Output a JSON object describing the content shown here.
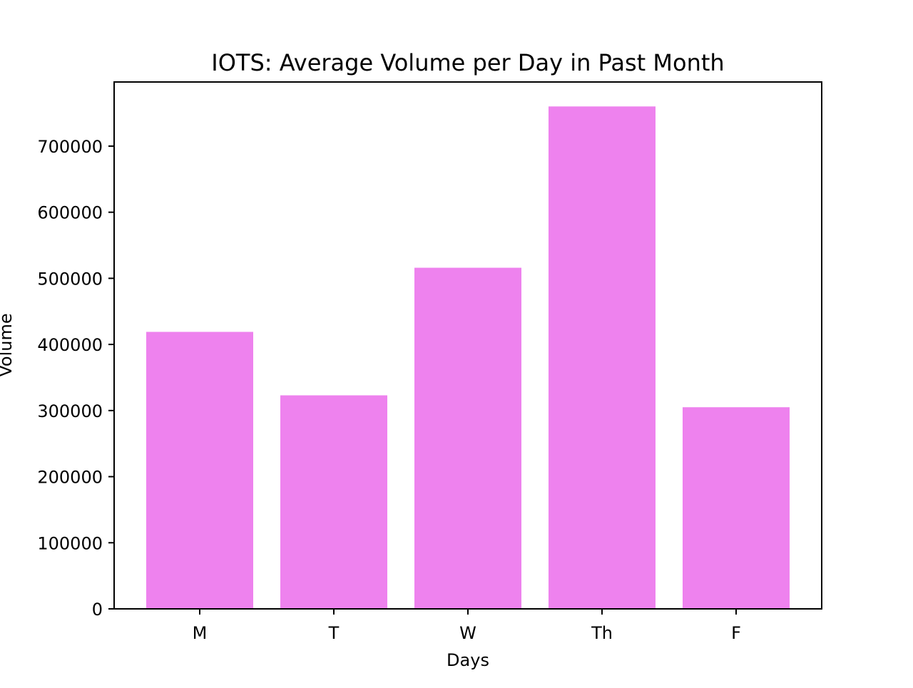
{
  "chart_data": {
    "type": "bar",
    "title": "IOTS: Average Volume per Day in Past Month",
    "xlabel": "Days",
    "ylabel": "Volume",
    "categories": [
      "M",
      "T",
      "W",
      "Th",
      "F"
    ],
    "values": [
      419000,
      323000,
      516000,
      760000,
      305000
    ],
    "ylim": [
      0,
      797000
    ],
    "yticks": [
      0,
      100000,
      200000,
      300000,
      400000,
      500000,
      600000,
      700000
    ],
    "ytick_labels": [
      "0",
      "100000",
      "200000",
      "300000",
      "400000",
      "500000",
      "600000",
      "700000"
    ],
    "bar_color": "#ee82ee",
    "grid": false,
    "legend": "none"
  }
}
